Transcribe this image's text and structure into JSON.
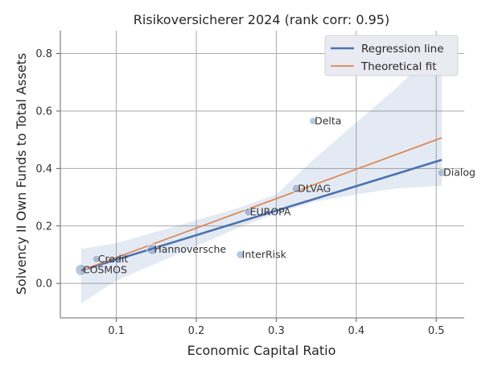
{
  "chart_data": {
    "type": "scatter",
    "title": "Risikoversicherer 2024 (rank corr: 0.95)",
    "xlabel": "Economic Capital Ratio",
    "ylabel": "Solvency II Own Funds to Total Assets",
    "xlim": [
      0.03,
      0.535
    ],
    "ylim": [
      -0.12,
      0.88
    ],
    "xticks": [
      "0.1",
      "0.2",
      "0.3",
      "0.4",
      "0.5"
    ],
    "yticks": [
      "0.0",
      "0.2",
      "0.4",
      "0.6",
      "0.8"
    ],
    "grid": true,
    "legend_position": "top-right",
    "points": [
      {
        "label": "COSMOS",
        "x": 0.056,
        "y": 0.047,
        "size": 3.0
      },
      {
        "label": "Credit",
        "x": 0.075,
        "y": 0.085,
        "size": 1.2
      },
      {
        "label": "Hannoversche",
        "x": 0.145,
        "y": 0.118,
        "size": 2.5
      },
      {
        "label": "InterRisk",
        "x": 0.255,
        "y": 0.1,
        "size": 1.3
      },
      {
        "label": "EUROPA",
        "x": 0.265,
        "y": 0.248,
        "size": 1.3
      },
      {
        "label": "DLVAG",
        "x": 0.325,
        "y": 0.33,
        "size": 1.6
      },
      {
        "label": "Delta",
        "x": 0.346,
        "y": 0.565,
        "size": 1.0
      },
      {
        "label": "Dialog",
        "x": 0.507,
        "y": 0.385,
        "size": 1.4
      }
    ],
    "series": [
      {
        "name": "Regression line",
        "kind": "line",
        "color": "#4c72b0",
        "points": [
          [
            0.056,
            0.045
          ],
          [
            0.507,
            0.43
          ]
        ]
      },
      {
        "name": "Theoretical fit",
        "kind": "line",
        "color": "#dd8452",
        "points": [
          [
            0.056,
            0.045
          ],
          [
            0.507,
            0.507
          ]
        ]
      }
    ],
    "confidence_band": {
      "color": "#4c72b0",
      "x": [
        0.056,
        0.1,
        0.15,
        0.2,
        0.25,
        0.3,
        0.35,
        0.4,
        0.45,
        0.507
      ],
      "lower": [
        -0.07,
        0.01,
        0.07,
        0.13,
        0.19,
        0.245,
        0.285,
        0.31,
        0.33,
        0.34
      ],
      "upper": [
        0.12,
        0.14,
        0.18,
        0.22,
        0.26,
        0.31,
        0.44,
        0.56,
        0.68,
        0.83
      ]
    },
    "colors": {
      "scatter": "#4c72b0",
      "band": "#4c72b0",
      "plot_bg": "#ffffff",
      "grid": "#a9a9a9"
    }
  }
}
